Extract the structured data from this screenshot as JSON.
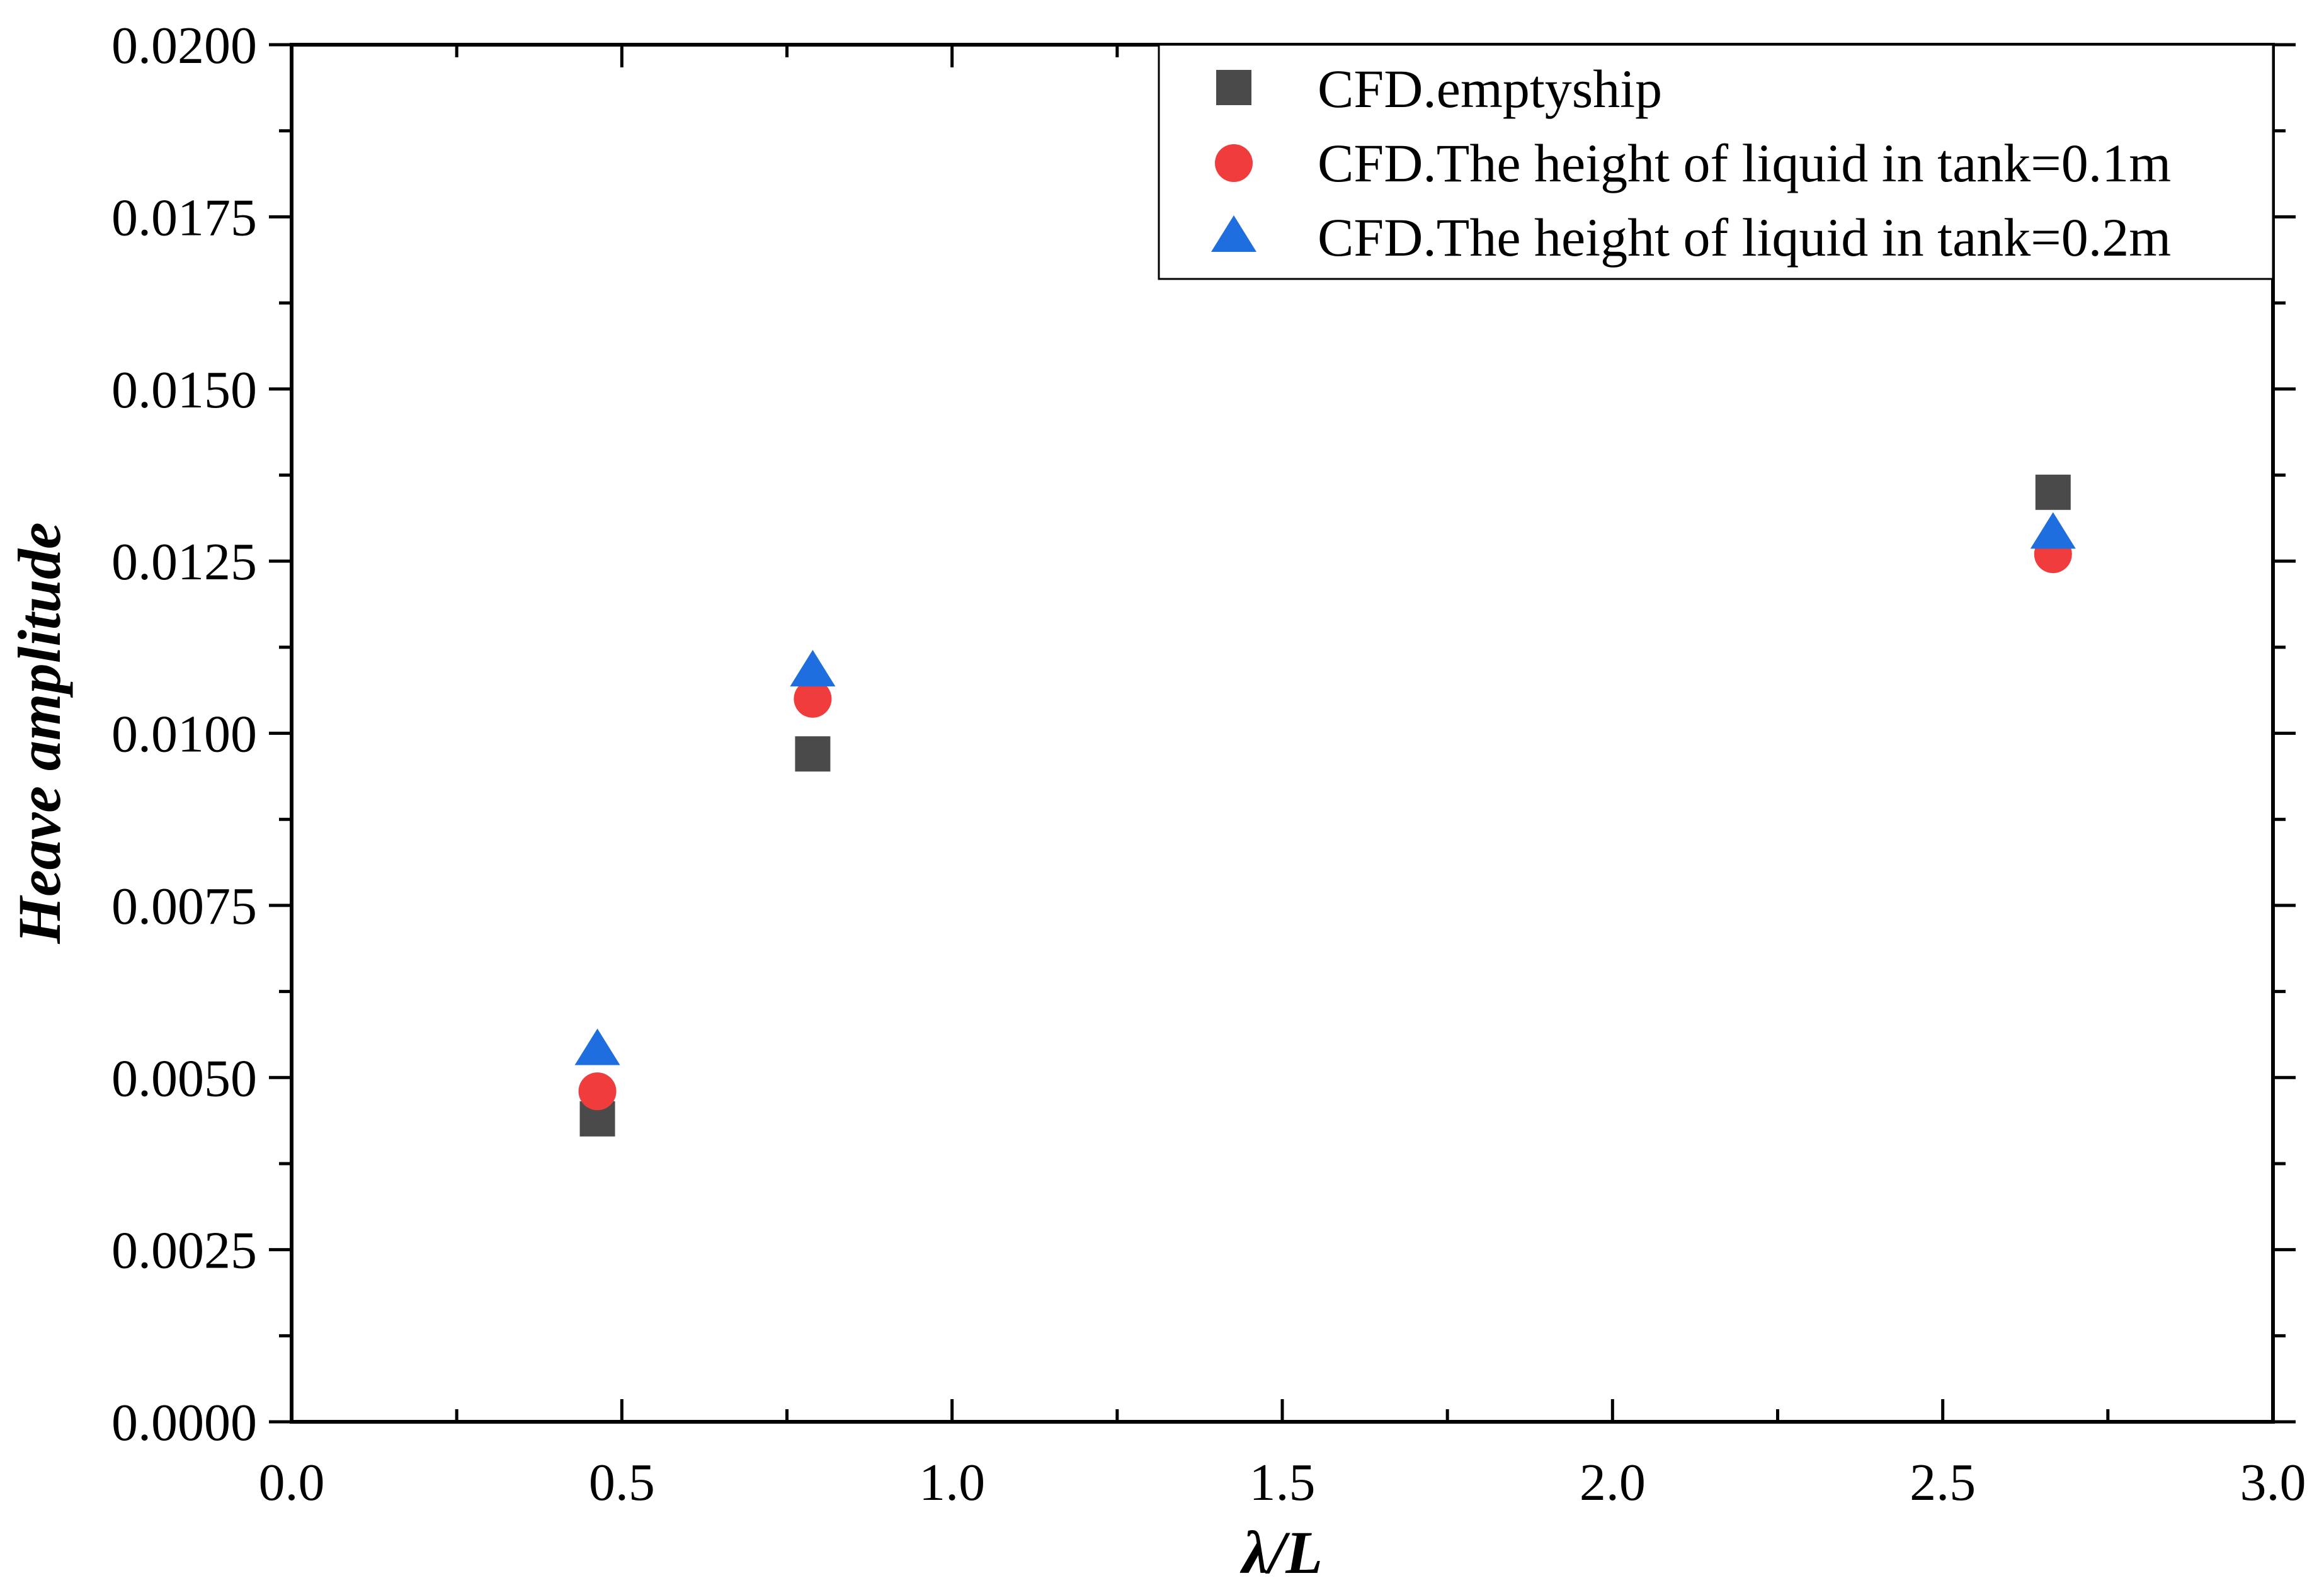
{
  "chart_data": {
    "type": "scatter",
    "title": "",
    "xlabel": "λ/L",
    "ylabel": "Heave amplitude",
    "xlim": [
      0.0,
      3.0
    ],
    "ylim": [
      0.0,
      0.02
    ],
    "grid": false,
    "legend_position": "top-right",
    "x_ticks": [
      "0.0",
      "0.5",
      "1.0",
      "1.5",
      "2.0",
      "2.5",
      "3.0"
    ],
    "y_ticks": [
      "0.0000",
      "0.0025",
      "0.0050",
      "0.0075",
      "0.0100",
      "0.0125",
      "0.0150",
      "0.0175",
      "0.0200"
    ],
    "series": [
      {
        "name": "CFD.emptyship",
        "marker": "square",
        "color": "#4a4a4a",
        "x": [
          0.463,
          0.789,
          2.667
        ],
        "y": [
          0.0044,
          0.0097,
          0.0135
        ]
      },
      {
        "name": "CFD.The height of liquid in tank=0.1m",
        "marker": "circle",
        "color": "#f03c3c",
        "x": [
          0.463,
          0.789,
          2.667
        ],
        "y": [
          0.0048,
          0.0105,
          0.0126
        ]
      },
      {
        "name": "CFD.The height of liquid in tank=0.2m",
        "marker": "triangle",
        "color": "#1f6ee0",
        "x": [
          0.463,
          0.789,
          2.667
        ],
        "y": [
          0.0054,
          0.0109,
          0.0129
        ]
      }
    ]
  }
}
